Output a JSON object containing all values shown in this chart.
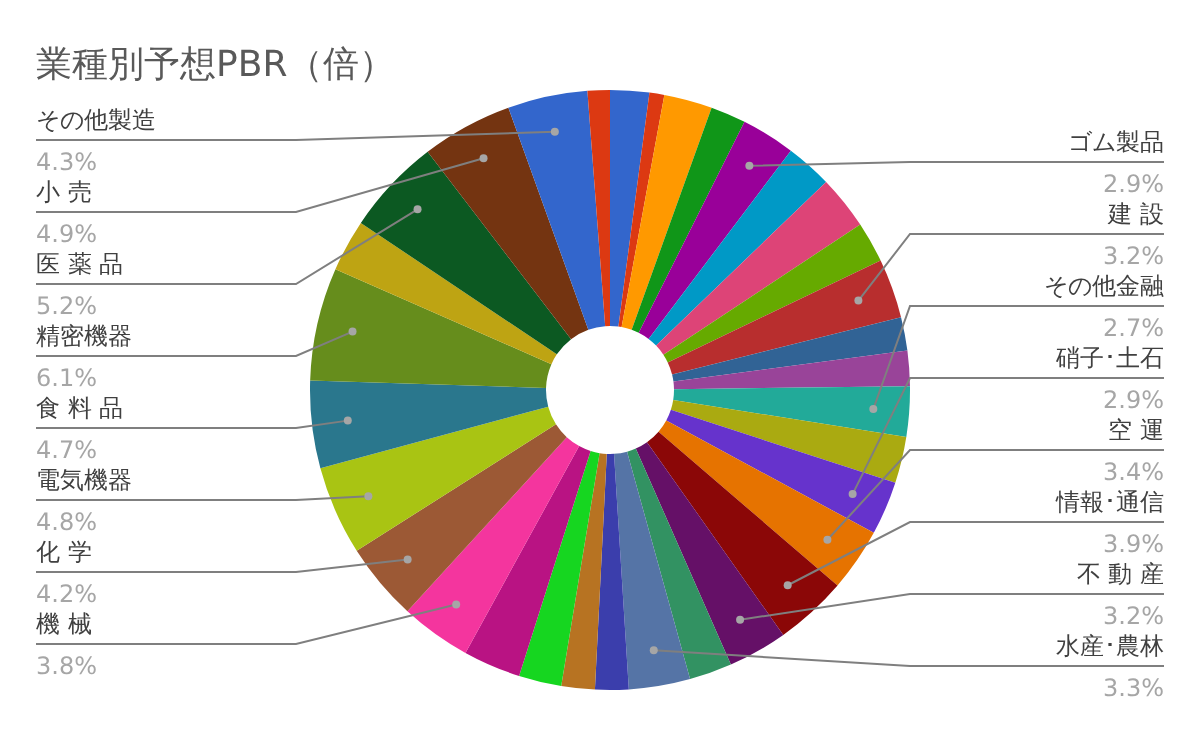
{
  "chart_data": {
    "type": "donut",
    "title": "業種別予想PBR（倍）",
    "categories": [
      null,
      null,
      null,
      null,
      "ゴム製品",
      null,
      null,
      null,
      "建 設",
      null,
      null,
      "その他金融",
      null,
      "硝子･土石",
      "空 運",
      "情報･通信",
      "不 動 産",
      null,
      "水産･農林",
      null,
      null,
      null,
      null,
      "機 械",
      "化 学",
      "電気機器",
      "食 料 品",
      "精密機器",
      null,
      "医 薬 品",
      "小 売",
      "その他製造",
      null
    ],
    "values": [
      2.1,
      0.8,
      2.6,
      1.9,
      2.9,
      2.5,
      2.9,
      2.2,
      3.2,
      1.8,
      1.9,
      2.7,
      2.5,
      2.9,
      3.4,
      3.9,
      3.2,
      2.3,
      3.3,
      1.8,
      1.8,
      2.3,
      3.1,
      3.8,
      4.2,
      4.8,
      4.7,
      6.1,
      2.8,
      5.2,
      4.9,
      4.3,
      1.2
    ],
    "value_labels": [
      null,
      null,
      null,
      null,
      "2.9%",
      null,
      null,
      null,
      "3.2%",
      null,
      null,
      "2.7%",
      null,
      "2.9%",
      "3.4%",
      "3.9%",
      "3.2%",
      null,
      "3.3%",
      null,
      null,
      null,
      null,
      "3.8%",
      "4.2%",
      "4.8%",
      "4.7%",
      "6.1%",
      null,
      "5.2%",
      "4.9%",
      "4.3%",
      null
    ],
    "colors": [
      "#3366cc",
      "#dc3912",
      "#ff9900",
      "#109618",
      "#990099",
      "#0099c6",
      "#dd4477",
      "#66aa00",
      "#b82e2e",
      "#316395",
      "#994499",
      "#22aa99",
      "#aaaa11",
      "#6633cc",
      "#e67300",
      "#8b0707",
      "#651067",
      "#329262",
      "#5574a6",
      "#3b3eac",
      "#b77322",
      "#16d620",
      "#b91383",
      "#f4359e",
      "#9c5935",
      "#a9c413",
      "#2a778d",
      "#668d1c",
      "#bea413",
      "#0c5922",
      "#743411",
      "#3366cc",
      "#dc3912"
    ]
  }
}
